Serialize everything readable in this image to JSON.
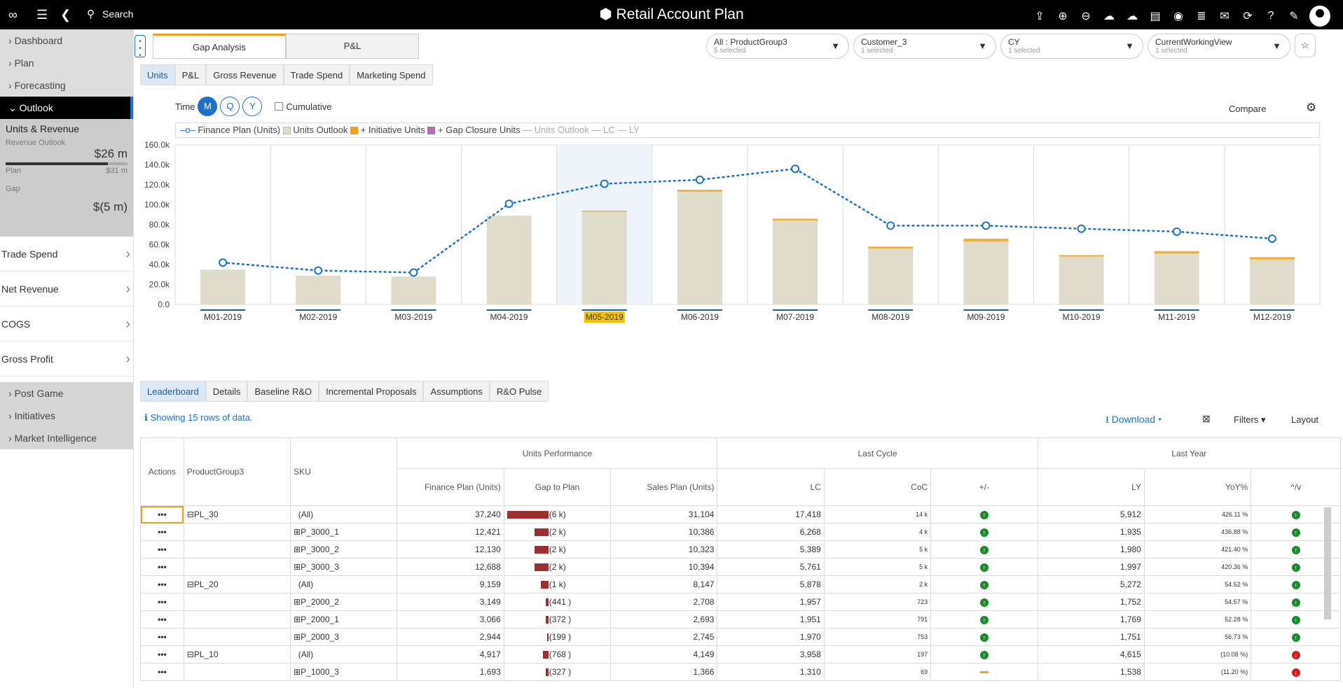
{
  "app": {
    "title": "Retail Account Plan",
    "search_label": "Search"
  },
  "sidebar": {
    "top_items": [
      "Dashboard",
      "Plan",
      "Forecasting"
    ],
    "outlook_label": "Outlook",
    "units_label": "Units & Revenue",
    "revenue_outlook_label": "Revenue Outlook",
    "revenue_outlook_value": "$26 m",
    "plan_label": "Plan",
    "plan_value": "$31 m",
    "gap_label": "Gap",
    "gap_value": "$(5 m)",
    "lower_items": [
      "Trade Spend",
      "Net Revenue",
      "COGS",
      "Gross Profit"
    ],
    "bottom_items": [
      "Post Game",
      "Initiatives",
      "Market Intelligence"
    ],
    "revenue_progress": 0.84
  },
  "tabs": [
    "Gap Analysis",
    "P&L"
  ],
  "filters": [
    {
      "label": "All : ProductGroup3",
      "sub": "5 selected"
    },
    {
      "label": "Customer_3",
      "sub": "1 selected"
    },
    {
      "label": "CY",
      "sub": "1 selected"
    },
    {
      "label": "CurrentWorkingView",
      "sub": "1 selected"
    }
  ],
  "measure_tabs": [
    "Units",
    "P&L",
    "Gross Revenue",
    "Trade Spend",
    "Marketing Spend"
  ],
  "time": {
    "label": "Time",
    "options": [
      "M",
      "Q",
      "Y"
    ],
    "cumulative": "Cumulative",
    "compare": "Compare"
  },
  "legend": {
    "finance": "Finance Plan (Units)",
    "outlook": "Units Outlook",
    "initiative": "+ Initiative Units",
    "gap": "+ Gap Closure Units",
    "uo": "Units Outlook",
    "lc": "LC",
    "ly": "LY"
  },
  "chart_data": {
    "type": "bar",
    "categories": [
      "M01-2019",
      "M02-2019",
      "M03-2019",
      "M04-2019",
      "M05-2019",
      "M06-2019",
      "M07-2019",
      "M08-2019",
      "M09-2019",
      "M10-2019",
      "M11-2019",
      "M12-2019"
    ],
    "series": [
      {
        "name": "Units Outlook",
        "values": [
          35,
          29,
          28,
          89,
          93,
          113,
          84,
          56,
          63,
          48,
          51,
          45
        ]
      },
      {
        "name": "+ Initiative Units",
        "values": [
          0,
          0,
          0,
          0,
          1,
          2,
          2,
          2,
          3,
          1.5,
          2.5,
          2.5
        ]
      },
      {
        "name": "Finance Plan (Units)",
        "values": [
          42,
          34,
          32,
          101,
          121,
          125,
          136,
          79,
          79,
          76,
          73,
          66
        ]
      }
    ],
    "yticks": [
      "0.0",
      "20.0k",
      "40.0k",
      "60.0k",
      "80.0k",
      "100.0k",
      "120.0k",
      "140.0k",
      "160.0k"
    ],
    "ylim": [
      0,
      160
    ],
    "highlight": "M05-2019",
    "colors": {
      "outlook": "#e0dccb",
      "initiative": "#f0b040",
      "finance": "#1a73c9"
    }
  },
  "detail_tabs": [
    "Leaderboard",
    "Details",
    "Baseline R&O",
    "Incremental Proposals",
    "Assumptions",
    "R&O Pulse"
  ],
  "info": "Showing 15 rows of data.",
  "download": "Download",
  "filters_label": "Filters",
  "layout_label": "Layout",
  "grid": {
    "groups": [
      "Units Performance",
      "Last Cycle",
      "Last Year"
    ],
    "columns": [
      "Actions",
      "ProductGroup3",
      "SKU",
      "Finance Plan (Units)",
      "Gap to Plan",
      "Sales Plan (Units)",
      "LC",
      "CoC",
      "+/-",
      "LY",
      "YoY%",
      "^/v"
    ],
    "rows": [
      {
        "pg": "PL_30",
        "sku": "(All)",
        "fp": "37,240",
        "gap": "(6 k)",
        "gapw": 0.95,
        "sp": "31,104",
        "lc": "17,418",
        "coc": "14 k",
        "pm": "up",
        "ly": "5,912",
        "yoy": "426.11 %",
        "v": "up"
      },
      {
        "pg": "",
        "sku": "P_3000_1",
        "fp": "12,421",
        "gap": "(2 k)",
        "gapw": 0.32,
        "sp": "10,386",
        "lc": "6,268",
        "coc": "4 k",
        "pm": "up",
        "ly": "1,935",
        "yoy": "436.88 %",
        "v": "up"
      },
      {
        "pg": "",
        "sku": "P_3000_2",
        "fp": "12,130",
        "gap": "(2 k)",
        "gapw": 0.32,
        "sp": "10,323",
        "lc": "5,389",
        "coc": "5 k",
        "pm": "up",
        "ly": "1,980",
        "yoy": "421.40 %",
        "v": "up"
      },
      {
        "pg": "",
        "sku": "P_3000_3",
        "fp": "12,688",
        "gap": "(2 k)",
        "gapw": 0.32,
        "sp": "10,394",
        "lc": "5,761",
        "coc": "5 k",
        "pm": "up",
        "ly": "1,997",
        "yoy": "420.36 %",
        "v": "up"
      },
      {
        "pg": "PL_20",
        "sku": "(All)",
        "fp": "9,159",
        "gap": "(1 k)",
        "gapw": 0.17,
        "sp": "8,147",
        "lc": "5,878",
        "coc": "2 k",
        "pm": "up",
        "ly": "5,272",
        "yoy": "54.52 %",
        "v": "up"
      },
      {
        "pg": "",
        "sku": "P_2000_2",
        "fp": "3,149",
        "gap": "(441 )",
        "gapw": 0.07,
        "sp": "2,708",
        "lc": "1,957",
        "coc": "723",
        "pm": "up",
        "ly": "1,752",
        "yoy": "54.57 %",
        "v": "up"
      },
      {
        "pg": "",
        "sku": "P_2000_1",
        "fp": "3,066",
        "gap": "(372 )",
        "gapw": 0.06,
        "sp": "2,693",
        "lc": "1,951",
        "coc": "791",
        "pm": "up",
        "ly": "1,769",
        "yoy": "52.28 %",
        "v": "up"
      },
      {
        "pg": "",
        "sku": "P_2000_3",
        "fp": "2,944",
        "gap": "(199 )",
        "gapw": 0.04,
        "sp": "2,745",
        "lc": "1,970",
        "coc": "753",
        "pm": "up",
        "ly": "1,751",
        "yoy": "56.73 %",
        "v": "up"
      },
      {
        "pg": "PL_10",
        "sku": "(All)",
        "fp": "4,917",
        "gap": "(768 )",
        "gapw": 0.13,
        "sp": "4,149",
        "lc": "3,958",
        "coc": "197",
        "pm": "up",
        "ly": "4,615",
        "yoy": "(10.08 %)",
        "v": "down"
      },
      {
        "pg": "",
        "sku": "P_1000_3",
        "fp": "1,693",
        "gap": "(327 )",
        "gapw": 0.06,
        "sp": "1,366",
        "lc": "1,310",
        "coc": "69",
        "pm": "flat",
        "ly": "1,538",
        "yoy": "(11.20 %)",
        "v": "down"
      }
    ]
  }
}
